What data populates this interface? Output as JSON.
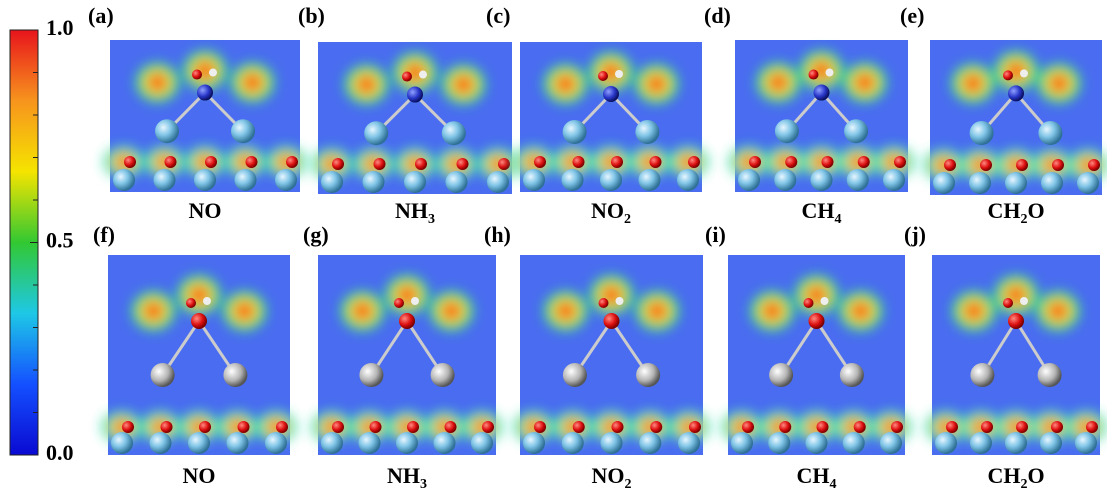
{
  "colorbar": {
    "range": [
      0,
      1
    ],
    "ticks": [
      {
        "value": 1,
        "label": "1.0"
      },
      0.5,
      {
        "value": 0,
        "label": "0.0"
      }
    ],
    "colors": [
      "#e8141c",
      "#f7941d",
      "#f5e400",
      "#32c832",
      "#1ec8e6",
      "#1450ff",
      "#0a0ad2"
    ]
  },
  "panels": [
    {
      "label": "(a)",
      "caption": [
        {
          "text": "NO"
        }
      ]
    },
    {
      "label": "(b)",
      "caption": [
        {
          "text": "NH"
        },
        {
          "sub": "3"
        }
      ]
    },
    {
      "label": "(c)",
      "caption": [
        {
          "text": "NO"
        },
        {
          "sub": "2"
        }
      ]
    },
    {
      "label": "(d)",
      "caption": [
        {
          "text": "CH"
        },
        {
          "sub": "4"
        }
      ]
    },
    {
      "label": "(e)",
      "caption": [
        {
          "text": "CH"
        },
        {
          "sub": "2"
        },
        {
          "text": "O"
        }
      ]
    },
    {
      "label": "(f)",
      "caption": [
        {
          "text": "NO"
        }
      ]
    },
    {
      "label": "(g)",
      "caption": [
        {
          "text": "NH"
        },
        {
          "sub": "3"
        }
      ]
    },
    {
      "label": "(h)",
      "caption": [
        {
          "text": "NO"
        },
        {
          "sub": "2"
        }
      ]
    },
    {
      "label": "(i)",
      "caption": [
        {
          "text": "CH"
        },
        {
          "sub": "4"
        }
      ]
    },
    {
      "label": "(j)",
      "caption": [
        {
          "text": "CH"
        },
        {
          "sub": "2"
        },
        {
          "text": "O"
        }
      ]
    }
  ]
}
